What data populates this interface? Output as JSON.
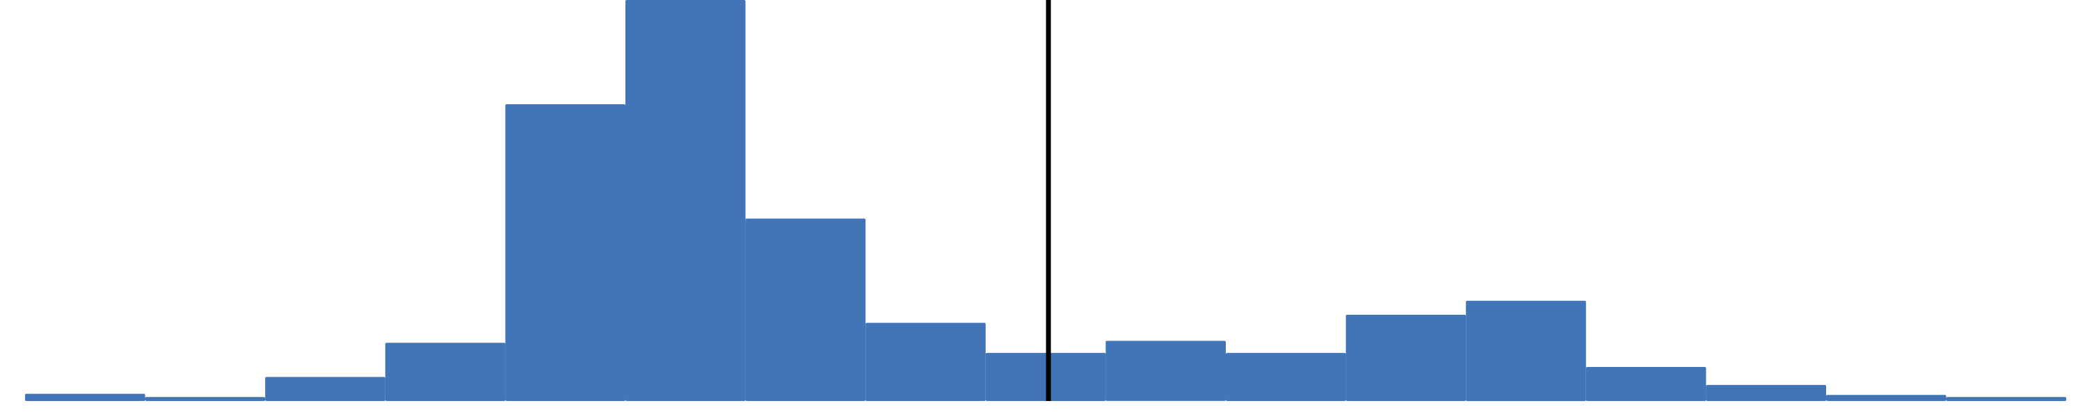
{
  "chart_data": {
    "type": "bar",
    "subtype": "histogram",
    "bins": 17,
    "values": [
      0.018,
      0.01,
      0.06,
      0.145,
      0.74,
      1.0,
      0.455,
      0.195,
      0.12,
      0.15,
      0.12,
      0.215,
      0.25,
      0.085,
      0.04,
      0.015,
      0.01
    ],
    "ylim": [
      0,
      1
    ],
    "bar_color": "#4275b7",
    "reference_line": {
      "position_bin": 8.5,
      "color": "#000000"
    },
    "grid": false,
    "legend": "none"
  }
}
